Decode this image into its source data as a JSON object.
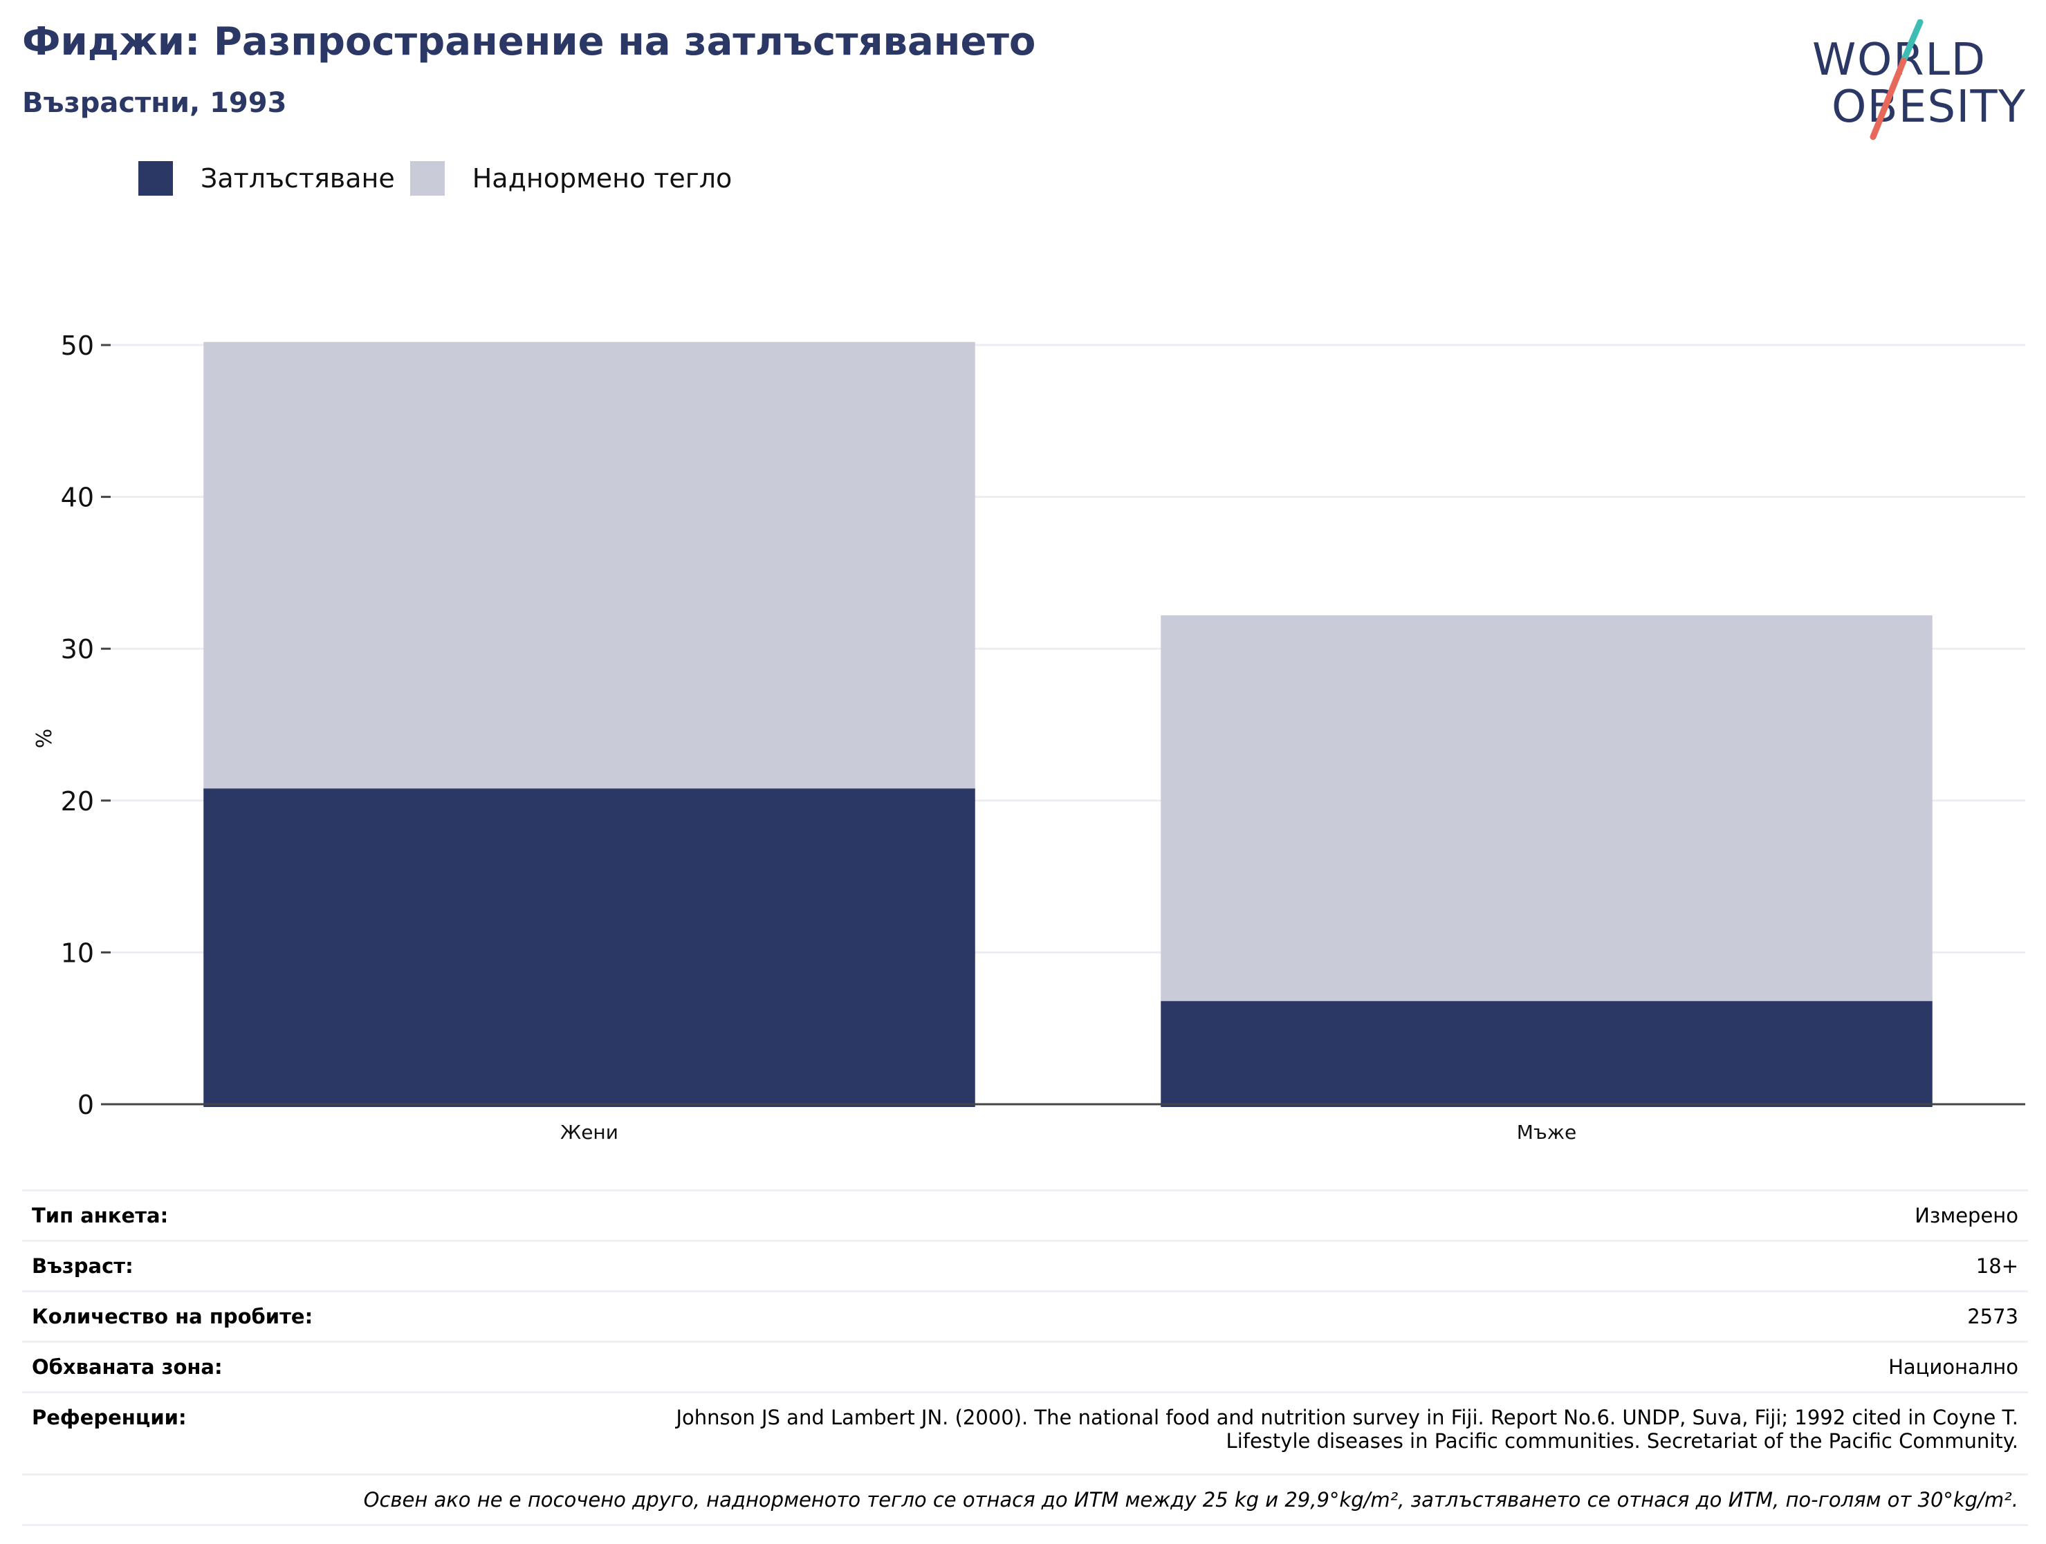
{
  "header": {
    "title": "Фиджи: Разпространение на затлъстяването",
    "subtitle": "Възрастни, 1993"
  },
  "logo": {
    "line1": "WORLD",
    "line2": "OBESITY",
    "colors": {
      "text": "#2b3765",
      "accent_teal": "#3dbdb3",
      "accent_coral": "#e8685a"
    }
  },
  "colors": {
    "obesity": "#2b3765",
    "overweight": "#cacbd8",
    "grid": "#ebedf3",
    "axis": "#444444"
  },
  "legend": [
    {
      "label": "Затлъстяване",
      "color": "#2b3765"
    },
    {
      "label": "Наднормено тегло",
      "color": "#cacbd8"
    }
  ],
  "chart_data": {
    "type": "bar",
    "stacked": true,
    "categories": [
      "Жени",
      "Мъже"
    ],
    "series": [
      {
        "name": "Затлъстяване",
        "values": [
          20.8,
          6.8
        ]
      },
      {
        "name": "Наднормено тегло",
        "values": [
          29.4,
          25.4
        ]
      }
    ],
    "ylabel": "%",
    "ylim": [
      0,
      50
    ],
    "yticks": [
      0,
      10,
      20,
      30,
      40,
      50
    ],
    "grid": true,
    "legend_position": "top-left"
  },
  "info": {
    "rows": [
      {
        "label": "Тип анкета:",
        "value": "Измерено"
      },
      {
        "label": "Възраст:",
        "value": "18+"
      },
      {
        "label": "Количество на пробите:",
        "value": "2573"
      },
      {
        "label": "Обхваната зона:",
        "value": "Национално"
      }
    ],
    "references": {
      "label": "Референции:",
      "line1": "Johnson JS and Lambert JN. (2000). The national food and nutrition survey in Fiji. Report No.6. UNDP, Suva, Fiji; 1992 cited in Coyne T.",
      "line2": "Lifestyle diseases in Pacific communities. Secretariat of the Pacific Community."
    },
    "note": "Освен ако не е посочено друго, наднорменото тегло се отнася до ИТМ между 25 kg и 29,9°kg/m², затлъстяването се отнася до ИТМ, по-голям от 30°kg/m²."
  }
}
